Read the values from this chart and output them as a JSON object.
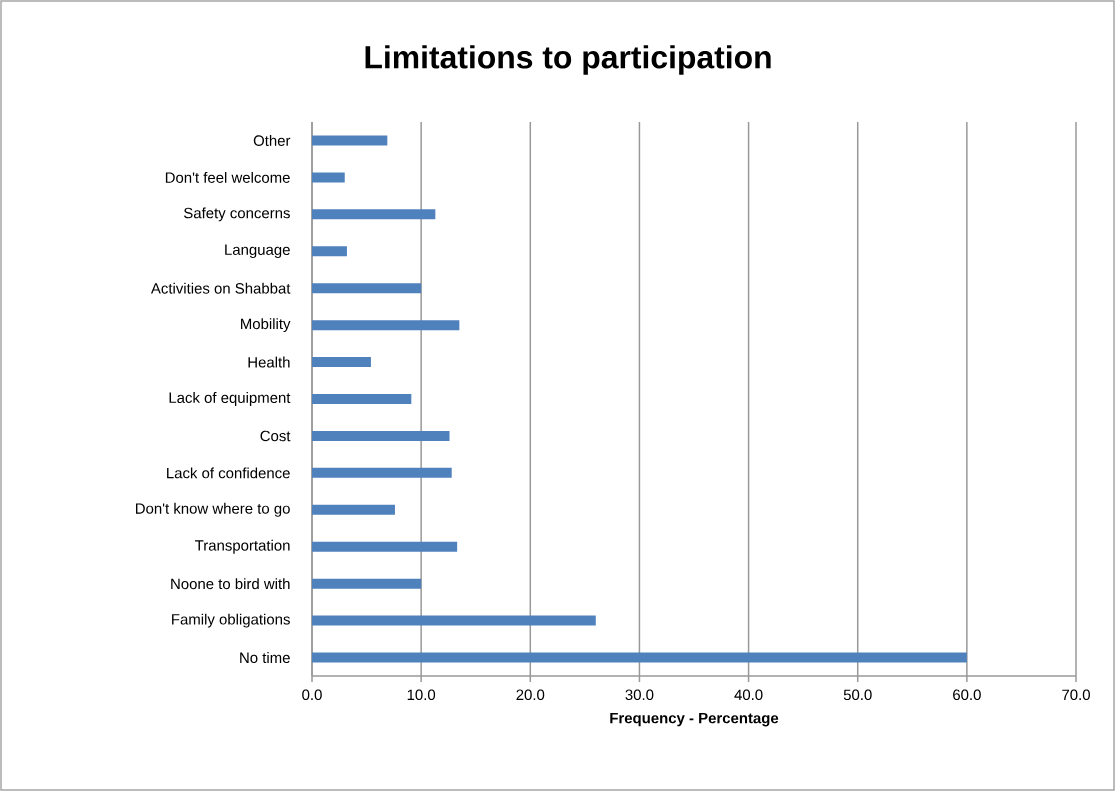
{
  "chart_data": {
    "type": "bar",
    "orientation": "horizontal",
    "title": "Limitations to participation",
    "xlabel": "Frequency - Percentage",
    "categories": [
      "Other",
      "Don't feel welcome",
      "Safety concerns",
      "Language",
      "Activities on Shabbat",
      "Mobility",
      "Health",
      "Lack of equipment",
      "Cost",
      "Lack of confidence",
      "Don't know where to go",
      "Transportation",
      "Noone to bird with",
      "Family obligations",
      "No time"
    ],
    "values": [
      6.9,
      3.0,
      11.3,
      3.2,
      10.0,
      13.5,
      5.4,
      9.1,
      12.6,
      12.8,
      7.6,
      13.3,
      10.0,
      26.0,
      60.0
    ],
    "color": "#4f81bd",
    "xlim": [
      0,
      70
    ],
    "xticks": [
      {
        "value": 0,
        "label": "0.0"
      },
      {
        "value": 10,
        "label": "10.0"
      },
      {
        "value": 20,
        "label": "20.0"
      },
      {
        "value": 30,
        "label": "30.0"
      },
      {
        "value": 40,
        "label": "40.0"
      },
      {
        "value": 50,
        "label": "50.0"
      },
      {
        "value": 60,
        "label": "60.0"
      },
      {
        "value": 70,
        "label": "70.0"
      }
    ],
    "grid": "x"
  }
}
